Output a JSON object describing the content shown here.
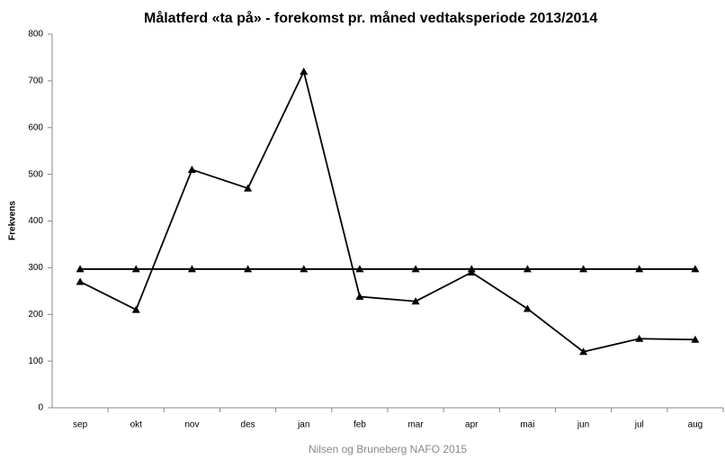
{
  "chart_data": {
    "type": "line",
    "title": "Målatferd «ta på» - forekomst pr. måned vedtaksperiode 2013/2014",
    "y_label": "Frekvens",
    "source": "Nilsen og Bruneberg NAFO 2015",
    "categories": [
      "sep",
      "okt",
      "nov",
      "des",
      "jan",
      "feb",
      "mar",
      "apr",
      "mai",
      "jun",
      "jul",
      "aug"
    ],
    "series": [
      {
        "color": "#000000",
        "values": [
          270,
          210,
          510,
          470,
          720,
          238,
          228,
          290,
          212,
          120,
          148,
          146
        ]
      },
      {
        "color": "#000000",
        "values": [
          297,
          297,
          297,
          297,
          297,
          297,
          297,
          297,
          297,
          297,
          297,
          297
        ]
      }
    ],
    "ylim": [
      0,
      800
    ],
    "yticks": [
      0,
      100,
      200,
      300,
      400,
      500,
      600,
      700,
      800
    ],
    "grid": false
  }
}
